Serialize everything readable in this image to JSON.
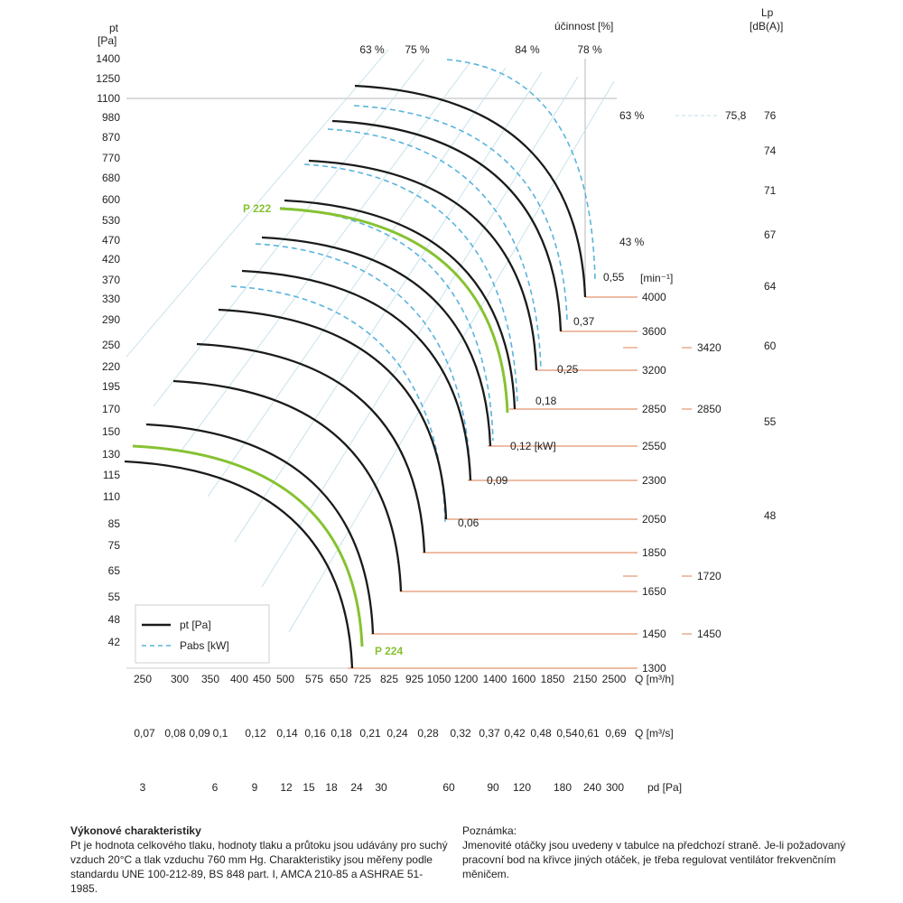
{
  "chart_data": {
    "type": "line",
    "title": "",
    "y_left": {
      "label": "pt",
      "unit": "[Pa]",
      "ticks": [
        "1400",
        "1250",
        "1100",
        "980",
        "870",
        "770",
        "680",
        "600",
        "530",
        "470",
        "420",
        "370",
        "330",
        "290",
        "250",
        "220",
        "195",
        "170",
        "150",
        "130",
        "115",
        "110",
        "85",
        "75",
        "65",
        "55",
        "48",
        "42"
      ]
    },
    "y_right": {
      "label": "Lp",
      "unit": "[dB(A)]",
      "ticks": [
        "76",
        "74",
        "71",
        "67",
        "64",
        "60",
        "55",
        "48"
      ]
    },
    "x_flow_m3h": {
      "label": "Q [m³/h]",
      "ticks": [
        "250",
        "300",
        "350",
        "400",
        "450",
        "500",
        "575",
        "650",
        "725",
        "825",
        "925",
        "1050",
        "1200",
        "1400",
        "1600",
        "1850",
        "2150",
        "2500"
      ]
    },
    "x_flow_m3s": {
      "label": "Q [m³/s]",
      "ticks": [
        "0,07",
        "0,08",
        "0,09",
        "0,1",
        "0,12",
        "0,14",
        "0,16",
        "0,18",
        "0,21",
        "0,24",
        "0,28",
        "0,32",
        "0,37",
        "0,42",
        "0,48",
        "0,54",
        "0,61",
        "0,69"
      ]
    },
    "x_dynamic_pressure": {
      "label": "pd [Pa]",
      "ticks": [
        "3",
        "6",
        "9",
        "12",
        "15",
        "18",
        "24",
        "30",
        "60",
        "90",
        "120",
        "180",
        "240",
        "300"
      ]
    },
    "efficiency": {
      "label": "účinnost [%]",
      "top_labels": [
        "63 %",
        "75 %",
        "84 %",
        "78 %"
      ],
      "right_labels": [
        "63 %",
        "43 %"
      ]
    },
    "speed_unit": "[min⁻¹]",
    "speeds": [
      "4000",
      "3600",
      "3200",
      "2850",
      "2550",
      "2300",
      "2050",
      "1850",
      "1650",
      "1450",
      "1300"
    ],
    "power_labels": [
      "0,55",
      "0,37",
      "0,25",
      "0,18",
      "0,12 [kW]",
      "0,09",
      "0,06"
    ],
    "noise_speed_labels": [
      "3420",
      "2850",
      "1720",
      "1450"
    ],
    "noise_value": "75,8",
    "highlight_labels": [
      "P 222",
      "P 224"
    ],
    "legend": [
      {
        "name": "pt [Pa]",
        "style": "solid",
        "color": "#1a1a1a"
      },
      {
        "name": "Pabs [kW]",
        "style": "dashed",
        "color": "#5ab4dc"
      }
    ],
    "colors": {
      "pressure_curve": "#1a1a1a",
      "power_curve": "#5ab4dc",
      "highlight_curve": "#86c232",
      "speed_line": "#e8a586",
      "grid": "#bcdde6"
    }
  },
  "notes": {
    "left_title": "Výkonové charakteristiky",
    "left_body": "Pt je hodnota celkového tlaku, hodnoty tlaku a průtoku jsou udávány pro suchý vzduch 20°C a tlak vzduchu 760 mm Hg. Charakteristiky jsou měřeny podle standardu UNE 100-212-89, BS 848 part. I, AMCA 210-85 a ASHRAE 51-1985.",
    "right_title": "Poznámka:",
    "right_body": "Jmenovité otáčky jsou uvedeny v tabulce na předchozí straně. Je-li požadovaný pracovní bod na křivce jiných otáček, je třeba regulovat ventilátor frekvenčním měničem."
  }
}
